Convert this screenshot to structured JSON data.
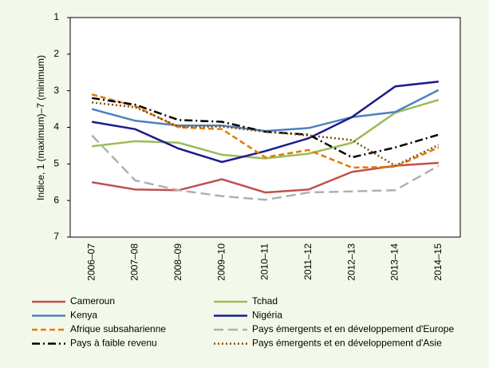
{
  "chart_data": {
    "type": "line",
    "y_label": "Indice, 1 (maximum)–7 (minimum)",
    "categories": [
      "2006–07",
      "2007–08",
      "2008–09",
      "2009–10",
      "2010–11",
      "2011–12",
      "2012–13",
      "2013–14",
      "2014–15"
    ],
    "ylim": [
      1,
      7
    ],
    "yticks": [
      1,
      2,
      3,
      4,
      5,
      6,
      7
    ],
    "y_inverted": true,
    "series": [
      {
        "name": "Cameroun",
        "color": "#c0504d",
        "dash": "solid",
        "values": [
          5.5,
          5.7,
          5.72,
          5.42,
          5.78,
          5.7,
          5.22,
          5.05,
          4.97
        ]
      },
      {
        "name": "Tchad",
        "color": "#9bbb59",
        "dash": "solid",
        "values": [
          4.52,
          4.38,
          4.42,
          4.75,
          4.85,
          4.72,
          4.42,
          3.6,
          3.25
        ]
      },
      {
        "name": "Kenya",
        "color": "#4f81bd",
        "dash": "solid",
        "values": [
          3.5,
          3.82,
          3.95,
          3.95,
          4.1,
          4.02,
          3.72,
          3.58,
          2.98
        ]
      },
      {
        "name": "Nigéria",
        "color": "#1a1a8c",
        "dash": "solid",
        "values": [
          3.85,
          4.05,
          4.58,
          4.95,
          4.65,
          4.3,
          3.72,
          2.88,
          2.75
        ]
      },
      {
        "name": "Afrique subsaharienne",
        "color": "#e07b00",
        "dash": "dashed",
        "values": [
          3.1,
          3.42,
          4.0,
          4.05,
          4.82,
          4.62,
          5.1,
          5.08,
          4.55
        ]
      },
      {
        "name": "Pays émergents et en développement d'Europe",
        "color": "#b0b0b0",
        "dash": "longdash",
        "values": [
          4.22,
          5.45,
          5.72,
          5.88,
          5.98,
          5.78,
          5.75,
          5.72,
          5.05
        ]
      },
      {
        "name": "Pays à faible revenu",
        "color": "#000000",
        "dash": "dashdot",
        "values": [
          3.2,
          3.38,
          3.8,
          3.85,
          4.12,
          4.2,
          4.82,
          4.55,
          4.2
        ]
      },
      {
        "name": "Pays émergents et en développement d'Asie",
        "color": "#7f4f10",
        "dash": "dotted",
        "values": [
          3.32,
          3.45,
          3.98,
          3.98,
          4.12,
          4.22,
          4.35,
          5.05,
          4.48
        ]
      }
    ]
  }
}
